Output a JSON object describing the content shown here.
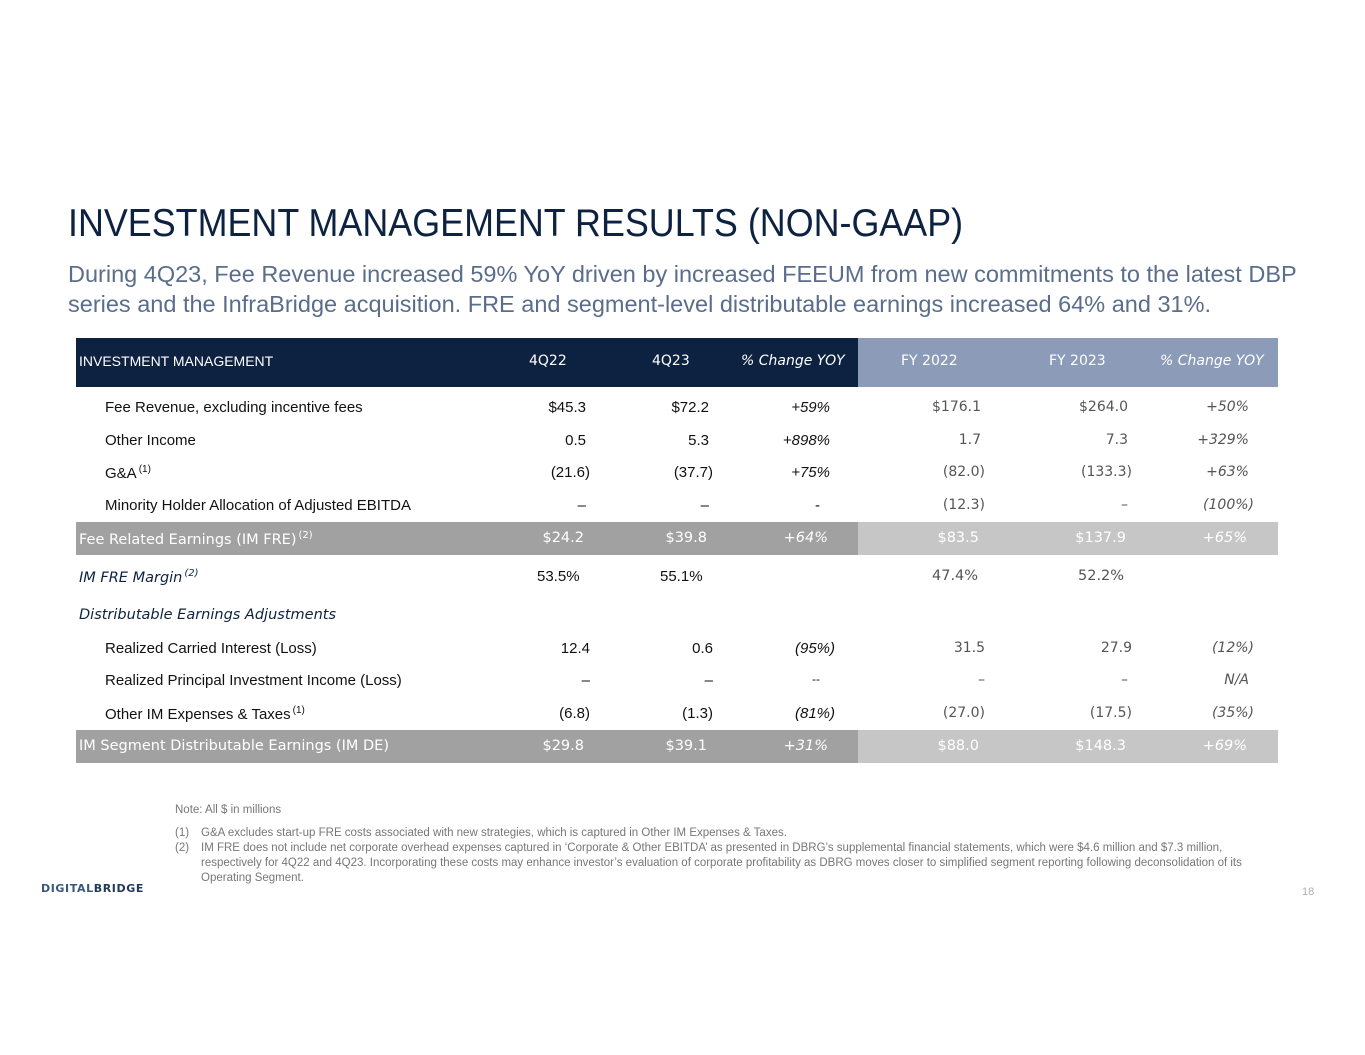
{
  "title": "INVESTMENT MANAGEMENT RESULTS (NON-GAAP)",
  "subtitle": "During 4Q23, Fee Revenue increased 59% YoY driven by increased FEEUM from new commitments to the latest DBP series and the InfraBridge acquisition. FRE and segment-level distributable earnings increased 64% and 31%.",
  "table": {
    "header": {
      "label": "INVESTMENT MANAGEMENT",
      "q1": "4Q22",
      "q2": "4Q23",
      "qchg": "% Change YOY",
      "fy1": "FY 2022",
      "fy2": "FY 2023",
      "fychg": "% Change YOY"
    },
    "rows": [
      {
        "label": "Fee Revenue, excluding incentive fees",
        "sup": "",
        "q1": "$45.3",
        "q2": "$72.2",
        "qchg": "+59%",
        "fy1": "$176.1",
        "fy2": "$264.0",
        "fychg": "+50%"
      },
      {
        "label": "Other Income",
        "sup": "",
        "q1": "0.5",
        "q2": "5.3",
        "qchg": "+898%",
        "fy1": "1.7",
        "fy2": "7.3",
        "fychg": "+329%"
      },
      {
        "label": "G&A",
        "sup": "(1)",
        "q1": "(21.6)",
        "q2": "(37.7)",
        "qchg": "+75%",
        "fy1": "(82.0)",
        "fy2": "(133.3)",
        "fychg": "+63%"
      },
      {
        "label": "Minority Holder Allocation of Adjusted EBITDA",
        "sup": "",
        "q1": "–",
        "q2": "–",
        "qchg": "-",
        "fy1": "(12.3)",
        "fy2": "–",
        "fychg": "(100%)"
      }
    ],
    "fre": {
      "label": "Fee Related Earnings (IM FRE)",
      "sup": "(2)",
      "q1": "$24.2",
      "q2": "$39.8",
      "qchg": "+64%",
      "fy1": "$83.5",
      "fy2": "$137.9",
      "fychg": "+65%"
    },
    "margin": {
      "label": "IM FRE Margin",
      "sup": "(2)",
      "q1": "53.5%",
      "q2": "55.1%",
      "fy1": "47.4%",
      "fy2": "52.2%"
    },
    "section": "Distributable Earnings Adjustments",
    "rows2": [
      {
        "label": "Realized Carried Interest (Loss)",
        "sup": "",
        "q1": "12.4",
        "q2": "0.6",
        "qchg": "(95%)",
        "fy1": "31.5",
        "fy2": "27.9",
        "fychg": "(12%)"
      },
      {
        "label": "Realized Principal Investment Income (Loss)",
        "sup": "",
        "q1": "–",
        "q2": "–",
        "qchg": "--",
        "fy1": "–",
        "fy2": "–",
        "fychg": "N/A"
      },
      {
        "label": "Other IM Expenses & Taxes",
        "sup": "(1)",
        "q1": "(6.8)",
        "q2": "(1.3)",
        "qchg": "(81%)",
        "fy1": "(27.0)",
        "fy2": "(17.5)",
        "fychg": "(35%)"
      }
    ],
    "de": {
      "label": "IM Segment Distributable Earnings (IM DE)",
      "q1": "$29.8",
      "q2": "$39.1",
      "qchg": "+31%",
      "fy1": "$88.0",
      "fy2": "$148.3",
      "fychg": "+69%"
    }
  },
  "notes": {
    "note": "Note: All $ in millions",
    "n1_num": "(1)",
    "n1": "G&A excludes start-up FRE costs associated with new strategies, which is captured in Other IM Expenses & Taxes.",
    "n2_num": "(2)",
    "n2": "IM FRE does not include net corporate overhead expenses captured in ‘Corporate & Other EBITDA’ as presented in DBRG’s supplemental financial statements, which were $4.6 million and $7.3 million, respectively for 4Q22 and 4Q23. Incorporating these costs may enhance investor’s evaluation of corporate profitability as DBRG moves closer to simplified segment reporting following deconsolidation of its Operating Segment."
  },
  "logo": {
    "part1": "DIGITAL",
    "part2": "BRIDGE"
  },
  "page_number": "18"
}
